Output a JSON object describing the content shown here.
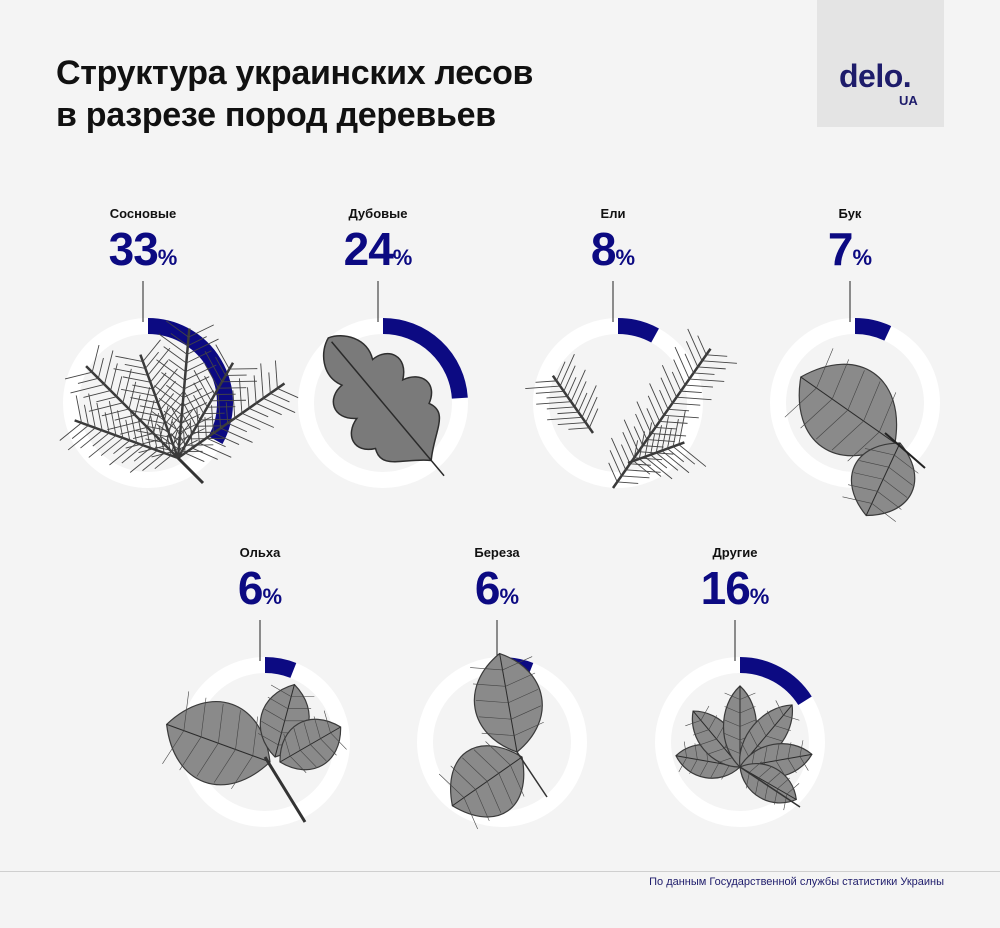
{
  "title": {
    "line1": "Структура украинских лесов",
    "line2": "в разрезе пород деревьев"
  },
  "logo": {
    "main": "delo.",
    "sub": "UA"
  },
  "colors": {
    "accent": "#0c0a82",
    "ring": "#ffffff",
    "background": "#f4f4f4"
  },
  "chart_data": {
    "type": "pie",
    "categories": [
      "Сосновые",
      "Дубовые",
      "Ели",
      "Бук",
      "Ольха",
      "Береза",
      "Другие"
    ],
    "values": [
      33,
      24,
      8,
      7,
      6,
      6,
      16
    ],
    "unit": "%",
    "images": [
      "pine-branch",
      "oak-leaf",
      "spruce-branch",
      "beech-leaves",
      "alder-leaves",
      "birch-leaves",
      "chestnut-leaf"
    ]
  },
  "source": "По данным Государственной службы статистики Украины"
}
